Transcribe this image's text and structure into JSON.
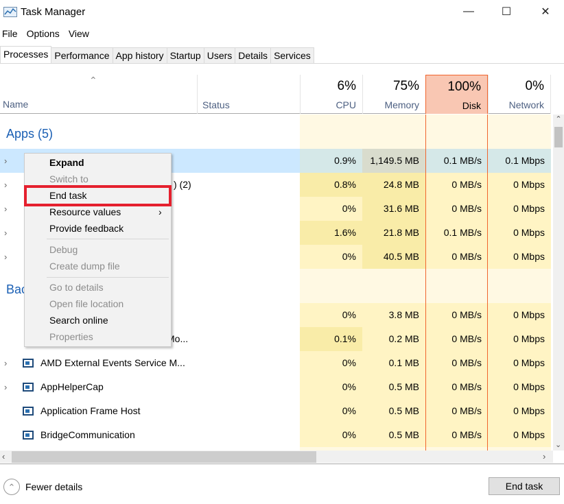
{
  "window": {
    "title": "Task Manager",
    "minimize": "—",
    "maximize": "☐",
    "close": "✕"
  },
  "menu": [
    "File",
    "Options",
    "View"
  ],
  "tabs": [
    "Processes",
    "Performance",
    "App history",
    "Startup",
    "Users",
    "Details",
    "Services"
  ],
  "columns": {
    "name": "Name",
    "status": "Status",
    "cpu": {
      "pct": "6%",
      "label": "CPU"
    },
    "memory": {
      "pct": "75%",
      "label": "Memory"
    },
    "disk": {
      "pct": "100%",
      "label": "Disk"
    },
    "network": {
      "pct": "0%",
      "label": "Network"
    }
  },
  "colors": {
    "disk_header": "#f9c7b3",
    "disk_border": "#f0642d",
    "selected_row": "#cce8ff",
    "heat": "#fff4c4",
    "group_heading": "#1a5fb4"
  },
  "groups": {
    "apps": "Apps (5)",
    "background": "Bac"
  },
  "rows": [
    {
      "name": "",
      "cpu": "0.9%",
      "memory": "1,149.5 MB",
      "disk": "0.1 MB/s",
      "network": "0.1 Mbps",
      "expand": true,
      "selected": true
    },
    {
      "name": ") (2)",
      "cpu": "0.8%",
      "memory": "24.8 MB",
      "disk": "0 MB/s",
      "network": "0 Mbps",
      "expand": true
    },
    {
      "name": "",
      "cpu": "0%",
      "memory": "31.6 MB",
      "disk": "0 MB/s",
      "network": "0 Mbps",
      "expand": true
    },
    {
      "name": "",
      "cpu": "1.6%",
      "memory": "21.8 MB",
      "disk": "0.1 MB/s",
      "network": "0 Mbps",
      "expand": true
    },
    {
      "name": "",
      "cpu": "0%",
      "memory": "40.5 MB",
      "disk": "0 MB/s",
      "network": "0 Mbps",
      "expand": true
    },
    {
      "name": "",
      "cpu": "0%",
      "memory": "3.8 MB",
      "disk": "0 MB/s",
      "network": "0 Mbps",
      "expand": false
    },
    {
      "name": "Mo...",
      "cpu": "0.1%",
      "memory": "0.2 MB",
      "disk": "0 MB/s",
      "network": "0 Mbps",
      "expand": false
    },
    {
      "name": "AMD External Events Service M...",
      "cpu": "0%",
      "memory": "0.1 MB",
      "disk": "0 MB/s",
      "network": "0 Mbps",
      "expand": true
    },
    {
      "name": "AppHelperCap",
      "cpu": "0%",
      "memory": "0.5 MB",
      "disk": "0 MB/s",
      "network": "0 Mbps",
      "expand": true
    },
    {
      "name": "Application Frame Host",
      "cpu": "0%",
      "memory": "0.5 MB",
      "disk": "0 MB/s",
      "network": "0 Mbps",
      "expand": false
    },
    {
      "name": "BridgeCommunication",
      "cpu": "0%",
      "memory": "0.5 MB",
      "disk": "0 MB/s",
      "network": "0 Mbps",
      "expand": false
    }
  ],
  "context_menu": [
    {
      "label": "Expand",
      "bold": true
    },
    {
      "label": "Switch to",
      "disabled": true
    },
    {
      "label": "End task",
      "highlighted": true
    },
    {
      "label": "Resource values",
      "submenu": true
    },
    {
      "label": "Provide feedback"
    },
    {
      "label": "Debug",
      "disabled": true
    },
    {
      "label": "Create dump file",
      "disabled": true
    },
    {
      "label": "Go to details",
      "disabled": true
    },
    {
      "label": "Open file location",
      "disabled": true
    },
    {
      "label": "Search online"
    },
    {
      "label": "Properties",
      "disabled": true
    }
  ],
  "footer": {
    "fewer_details": "Fewer details",
    "end_task": "End task"
  }
}
